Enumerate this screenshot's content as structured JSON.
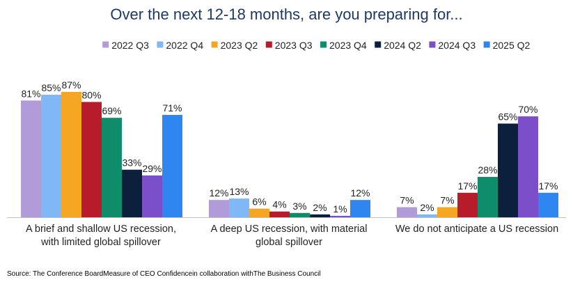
{
  "chart_data": {
    "type": "bar",
    "title": "Over the next 12-18 months, are you preparing for...",
    "categories": [
      [
        "A brief and shallow US recession,",
        "with limited global spillover"
      ],
      [
        "A deep US recession, with material",
        "global spillover"
      ],
      [
        "We do not anticipate a US recession"
      ]
    ],
    "series": [
      {
        "name": "2022 Q3",
        "color": "#b19cd9",
        "values": [
          81,
          12,
          7
        ]
      },
      {
        "name": "2022 Q4",
        "color": "#7fb8f5",
        "values": [
          85,
          13,
          2
        ]
      },
      {
        "name": "2023 Q2",
        "color": "#f5a623",
        "values": [
          87,
          6,
          7
        ]
      },
      {
        "name": "2023 Q3",
        "color": "#b71c2b",
        "values": [
          80,
          4,
          17
        ]
      },
      {
        "name": "2023 Q4",
        "color": "#0f8c6a",
        "values": [
          69,
          3,
          28
        ]
      },
      {
        "name": "2024 Q2",
        "color": "#0c1f3d",
        "values": [
          33,
          2,
          65
        ]
      },
      {
        "name": "2024 Q3",
        "color": "#7b4fc9",
        "values": [
          29,
          1,
          70
        ]
      },
      {
        "name": "2025 Q2",
        "color": "#2f86f0",
        "values": [
          71,
          12,
          17
        ]
      }
    ],
    "value_suffix": "%",
    "ylim": [
      0,
      100
    ],
    "legend_position": "top",
    "grid": false
  },
  "source": "Source: The Conference BoardMeasure of CEO Confidencein collaboration withThe Business Council"
}
